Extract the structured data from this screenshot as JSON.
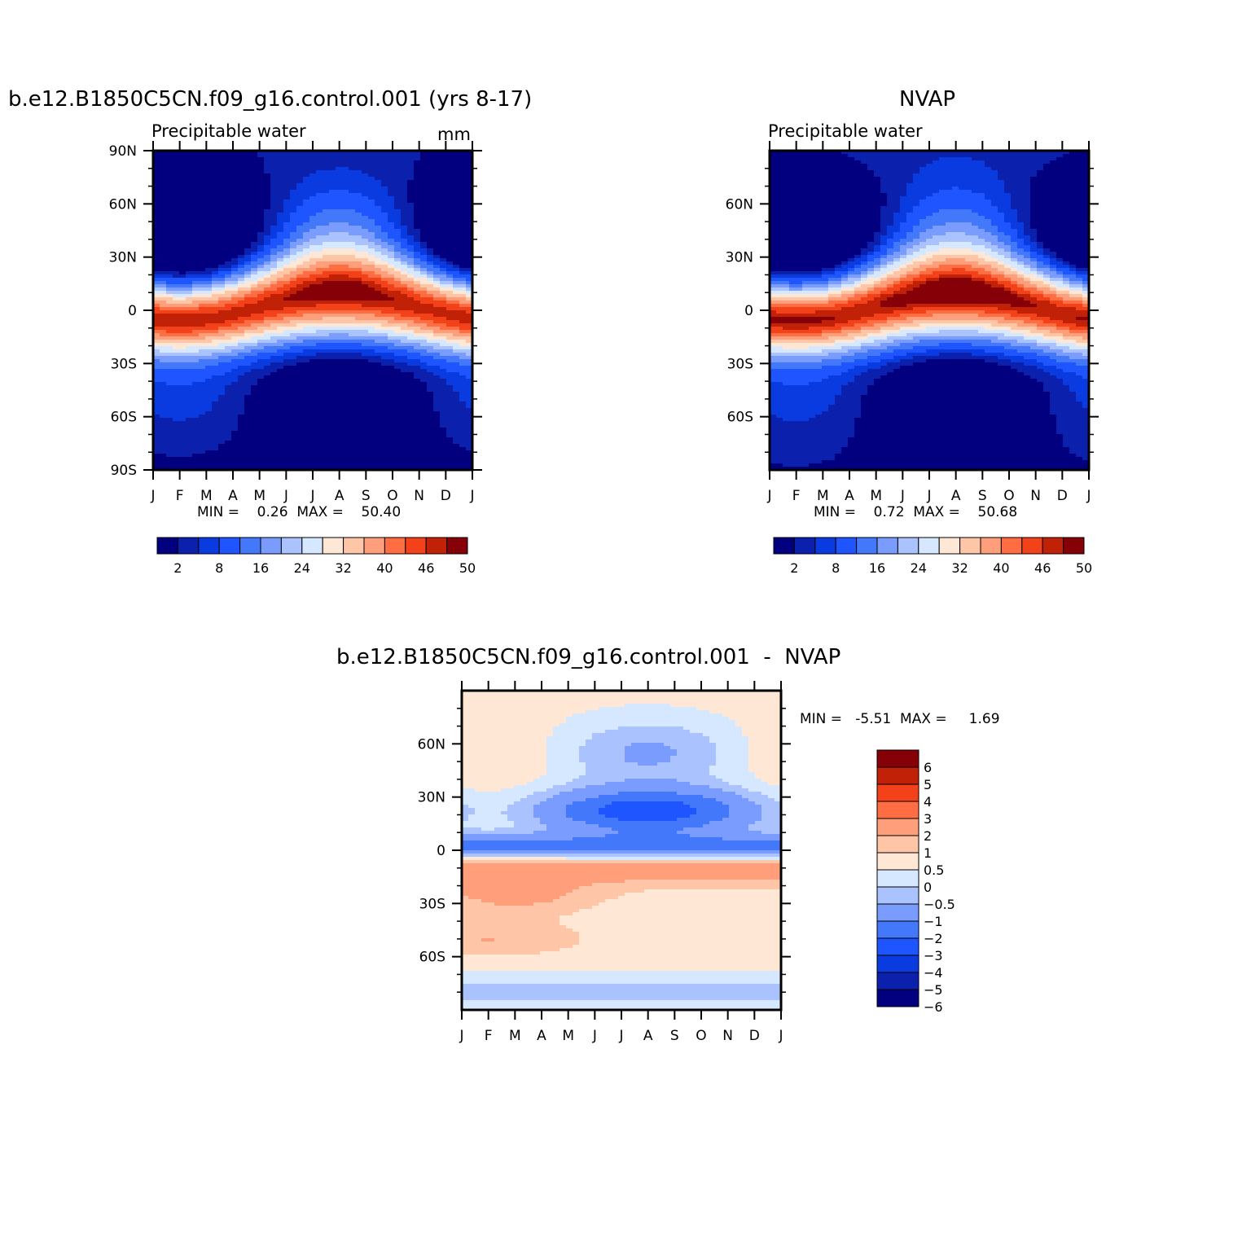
{
  "palette_abs": [
    "#02007e",
    "#0b21ad",
    "#0a3be0",
    "#1f55ff",
    "#4478fb",
    "#7a9cff",
    "#aac3fe",
    "#d6e8ff",
    "#fee8d5",
    "#fec5a6",
    "#fe9e7a",
    "#fe6e42",
    "#f3411a",
    "#c12106",
    "#860007"
  ],
  "palette_diff": [
    "#02007e",
    "#0b21ad",
    "#0a3be0",
    "#1f55ff",
    "#4478fb",
    "#7a9cff",
    "#aac3fe",
    "#d6e8ff",
    "#fee8d5",
    "#fec5a6",
    "#fe9e7a",
    "#fe6e42",
    "#f3411a",
    "#c12106",
    "#860007"
  ],
  "panels": {
    "model": {
      "title": "b.e12.B1850C5CN.f09_g16.control.001 (yrs 8-17)",
      "subtitle": "Precipitable water",
      "units": "mm",
      "stats": "MIN =    0.26  MAX =    50.40"
    },
    "obs": {
      "title": "NVAP",
      "subtitle": "Precipitable water",
      "stats": "MIN =    0.72  MAX =    50.68"
    },
    "diff": {
      "title": "b.e12.B1850C5CN.f09_g16.control.001  -  NVAP",
      "stats": "MIN =   -5.51  MAX =     1.69"
    }
  },
  "chart_data": [
    {
      "type": "heatmap",
      "title": "b.e12.B1850C5CN.f09_g16.control.001 (yrs 8-17)",
      "subtitle": "Precipitable water",
      "units": "mm",
      "x_labels": [
        "J",
        "F",
        "M",
        "A",
        "M",
        "J",
        "J",
        "A",
        "S",
        "O",
        "N",
        "D",
        "J"
      ],
      "y_ticks": [
        {
          "lat": 90,
          "label": "90N"
        },
        {
          "lat": 60,
          "label": "60N"
        },
        {
          "lat": 30,
          "label": "30N"
        },
        {
          "lat": 0,
          "label": "0"
        },
        {
          "lat": -30,
          "label": "30S"
        },
        {
          "lat": -60,
          "label": "60S"
        },
        {
          "lat": -90,
          "label": "90S"
        }
      ],
      "ylim": [
        -90,
        90
      ],
      "min": 0.26,
      "max": 50.4,
      "field": {
        "peak": 47,
        "amp": 12,
        "dry_north": 2,
        "dry_south": 0.5
      },
      "colorbar_labels": [
        "2",
        "8",
        "16",
        "24",
        "32",
        "40",
        "46",
        "50"
      ]
    },
    {
      "type": "heatmap",
      "title": "NVAP",
      "subtitle": "Precipitable water",
      "x_labels": [
        "J",
        "F",
        "M",
        "A",
        "M",
        "J",
        "J",
        "A",
        "S",
        "O",
        "N",
        "D",
        "J"
      ],
      "y_ticks": [
        {
          "lat": 60,
          "label": "60N"
        },
        {
          "lat": 30,
          "label": "30N"
        },
        {
          "lat": 0,
          "label": "0"
        },
        {
          "lat": -30,
          "label": "30S"
        },
        {
          "lat": -60,
          "label": "60S"
        }
      ],
      "ylim": [
        -90,
        90
      ],
      "min": 0.72,
      "max": 50.68,
      "field": {
        "peak": 48,
        "amp": 12,
        "dry_north": 3,
        "dry_south": 1
      },
      "colorbar_labels": [
        "2",
        "8",
        "16",
        "24",
        "32",
        "40",
        "46",
        "50"
      ]
    },
    {
      "type": "heatmap",
      "title": "b.e12.B1850C5CN.f09_g16.control.001  -  NVAP",
      "x_labels": [
        "J",
        "F",
        "M",
        "A",
        "M",
        "J",
        "J",
        "A",
        "S",
        "O",
        "N",
        "D",
        "J"
      ],
      "y_ticks": [
        {
          "lat": 60,
          "label": "60N"
        },
        {
          "lat": 30,
          "label": "30N"
        },
        {
          "lat": 0,
          "label": "0"
        },
        {
          "lat": -30,
          "label": "30S"
        },
        {
          "lat": -60,
          "label": "60S"
        }
      ],
      "ylim": [
        -90,
        90
      ],
      "min": -5.51,
      "max": 1.69,
      "colorbar_labels": [
        "6",
        "5",
        "4",
        "3",
        "2",
        "1",
        "0.5",
        "0",
        "-0.5",
        "-1",
        "-2",
        "-3",
        "-4",
        "-5",
        "-6"
      ]
    }
  ]
}
